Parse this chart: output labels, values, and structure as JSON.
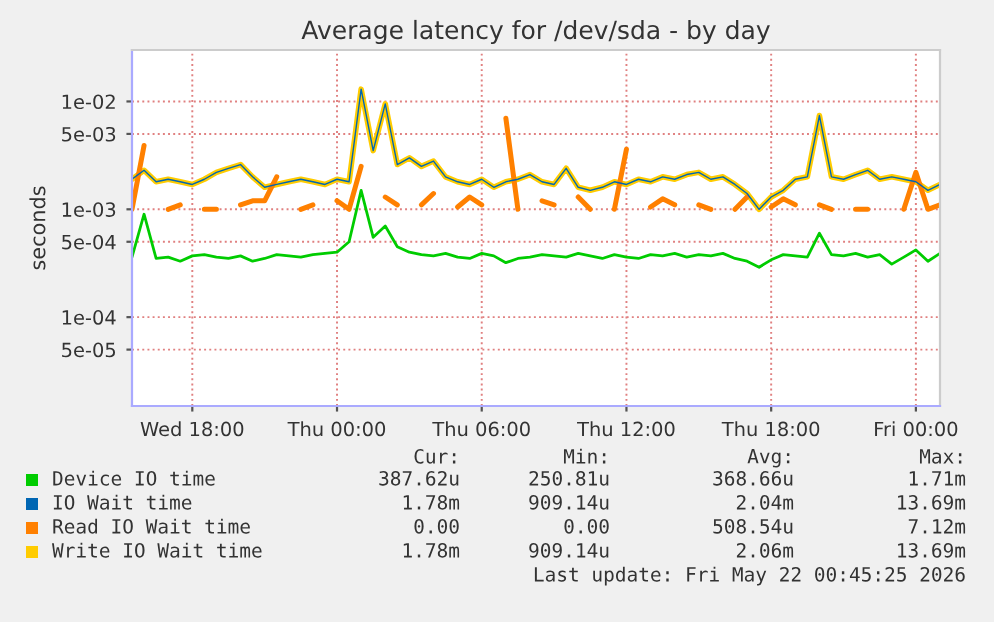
{
  "chart_data": {
    "type": "line",
    "title": "Average latency for /dev/sda - by day",
    "ylabel": "seconds",
    "log": "y",
    "x": [
      "2026-05-20T15:30",
      "2026-05-20T16:00",
      "2026-05-20T16:30",
      "2026-05-20T17:00",
      "2026-05-20T17:30",
      "2026-05-20T18:00",
      "2026-05-20T18:30",
      "2026-05-20T19:00",
      "2026-05-20T19:30",
      "2026-05-20T20:00",
      "2026-05-20T20:30",
      "2026-05-20T21:00",
      "2026-05-20T21:30",
      "2026-05-20T22:00",
      "2026-05-20T22:30",
      "2026-05-20T23:00",
      "2026-05-20T23:30",
      "2026-05-21T00:00",
      "2026-05-21T00:30",
      "2026-05-21T01:00",
      "2026-05-21T01:30",
      "2026-05-21T02:00",
      "2026-05-21T02:30",
      "2026-05-21T03:00",
      "2026-05-21T03:30",
      "2026-05-21T04:00",
      "2026-05-21T04:30",
      "2026-05-21T05:00",
      "2026-05-21T05:30",
      "2026-05-21T06:00",
      "2026-05-21T06:30",
      "2026-05-21T07:00",
      "2026-05-21T07:30",
      "2026-05-21T08:00",
      "2026-05-21T08:30",
      "2026-05-21T09:00",
      "2026-05-21T09:30",
      "2026-05-21T10:00",
      "2026-05-21T10:30",
      "2026-05-21T11:00",
      "2026-05-21T11:30",
      "2026-05-21T12:00",
      "2026-05-21T12:30",
      "2026-05-21T13:00",
      "2026-05-21T13:30",
      "2026-05-21T14:00",
      "2026-05-21T14:30",
      "2026-05-21T15:00",
      "2026-05-21T15:30",
      "2026-05-21T16:00",
      "2026-05-21T16:30",
      "2026-05-21T17:00",
      "2026-05-21T17:30",
      "2026-05-21T18:00",
      "2026-05-21T18:30",
      "2026-05-21T19:00",
      "2026-05-21T19:30",
      "2026-05-21T20:00",
      "2026-05-21T20:30",
      "2026-05-21T21:00",
      "2026-05-21T21:30",
      "2026-05-21T22:00",
      "2026-05-21T22:30",
      "2026-05-21T23:00",
      "2026-05-21T23:30",
      "2026-05-22T00:00",
      "2026-05-22T00:30",
      "2026-05-22T01:00"
    ],
    "series": [
      {
        "name": "Device IO time",
        "color": "#00cc00",
        "values": [
          0.00036,
          0.0009,
          0.00035,
          0.00036,
          0.00033,
          0.00037,
          0.00038,
          0.00036,
          0.00035,
          0.00037,
          0.00033,
          0.00035,
          0.00038,
          0.00037,
          0.00036,
          0.00038,
          0.00039,
          0.0004,
          0.0005,
          0.0015,
          0.00055,
          0.0007,
          0.00045,
          0.0004,
          0.00038,
          0.00037,
          0.00039,
          0.00036,
          0.00035,
          0.00039,
          0.00037,
          0.00032,
          0.00035,
          0.00036,
          0.00038,
          0.00037,
          0.00036,
          0.00039,
          0.00037,
          0.00035,
          0.00038,
          0.00036,
          0.00035,
          0.00038,
          0.00037,
          0.00039,
          0.00036,
          0.00038,
          0.00037,
          0.00039,
          0.00035,
          0.00033,
          0.00029,
          0.00034,
          0.00038,
          0.00037,
          0.00036,
          0.0006,
          0.00038,
          0.00037,
          0.00039,
          0.00036,
          0.00038,
          0.00031,
          0.00036,
          0.00042,
          0.00033,
          0.00039
        ]
      },
      {
        "name": "IO Wait time",
        "color": "#0066b3",
        "values": [
          0.0019,
          0.0023,
          0.0018,
          0.0019,
          0.0018,
          0.0017,
          0.0019,
          0.0022,
          0.0024,
          0.0026,
          0.002,
          0.0016,
          0.0017,
          0.0018,
          0.0019,
          0.0018,
          0.0017,
          0.0019,
          0.0018,
          0.013,
          0.0035,
          0.0095,
          0.0026,
          0.003,
          0.0025,
          0.0028,
          0.002,
          0.0018,
          0.0017,
          0.0019,
          0.0016,
          0.0018,
          0.0019,
          0.0021,
          0.0018,
          0.0017,
          0.0024,
          0.0016,
          0.0015,
          0.0016,
          0.0018,
          0.0017,
          0.0019,
          0.0018,
          0.002,
          0.0019,
          0.0021,
          0.0022,
          0.0019,
          0.002,
          0.0017,
          0.0014,
          0.001,
          0.0013,
          0.0015,
          0.0019,
          0.002,
          0.0074,
          0.002,
          0.0019,
          0.0021,
          0.0023,
          0.0019,
          0.002,
          0.0019,
          0.0018,
          0.0015,
          0.0017
        ]
      },
      {
        "name": "Read IO Wait time",
        "color": "#ff8000",
        "values": [
          0.001,
          0.0039,
          null,
          0.001,
          0.0011,
          null,
          0.001,
          0.001,
          null,
          0.0011,
          0.0012,
          0.0012,
          0.002,
          null,
          0.001,
          0.0011,
          null,
          0.0012,
          0.001,
          0.0025,
          null,
          0.0013,
          0.0011,
          null,
          0.0011,
          0.0014,
          null,
          0.00105,
          0.0013,
          0.0011,
          null,
          0.007,
          0.001,
          null,
          0.0012,
          0.0011,
          null,
          0.0013,
          0.001,
          null,
          0.001,
          0.0036,
          null,
          0.00105,
          0.00125,
          0.0011,
          null,
          0.0011,
          0.001,
          null,
          0.001,
          0.0013,
          null,
          0.00105,
          0.00125,
          0.0011,
          null,
          0.0011,
          0.001,
          null,
          0.001,
          0.001,
          null,
          null,
          0.001,
          0.0022,
          0.001,
          0.0011
        ]
      },
      {
        "name": "Write IO Wait time",
        "color": "#ffcc00",
        "values": [
          0.0019,
          0.0023,
          0.0018,
          0.0019,
          0.0018,
          0.0017,
          0.0019,
          0.0022,
          0.0024,
          0.0026,
          0.002,
          0.0016,
          0.0017,
          0.0018,
          0.0019,
          0.0018,
          0.0017,
          0.0019,
          0.0018,
          0.013,
          0.0035,
          0.0095,
          0.0026,
          0.003,
          0.0025,
          0.0028,
          0.002,
          0.0018,
          0.0017,
          0.0019,
          0.0016,
          0.0018,
          0.0019,
          0.0021,
          0.0018,
          0.0017,
          0.0024,
          0.0016,
          0.0015,
          0.0016,
          0.0018,
          0.0017,
          0.0019,
          0.0018,
          0.002,
          0.0019,
          0.0021,
          0.0022,
          0.0019,
          0.002,
          0.0017,
          0.0014,
          0.001,
          0.0013,
          0.0015,
          0.0019,
          0.002,
          0.0074,
          0.002,
          0.0019,
          0.0021,
          0.0023,
          0.0019,
          0.002,
          0.0019,
          0.0018,
          0.0015,
          0.0017
        ]
      }
    ],
    "xlim": [
      "2026-05-20T15:30",
      "2026-05-22T01:00"
    ],
    "xticks": [
      {
        "value": "2026-05-20T18:00",
        "label": "Wed 18:00"
      },
      {
        "value": "2026-05-21T00:00",
        "label": "Thu 00:00"
      },
      {
        "value": "2026-05-21T06:00",
        "label": "Thu 06:00"
      },
      {
        "value": "2026-05-21T12:00",
        "label": "Thu 12:00"
      },
      {
        "value": "2026-05-21T18:00",
        "label": "Thu 18:00"
      },
      {
        "value": "2026-05-22T00:00",
        "label": "Fri 00:00"
      }
    ],
    "ylim": [
      1.5e-05,
      0.03
    ],
    "yticks": [
      {
        "value": 5e-05,
        "label": "5e-05"
      },
      {
        "value": 0.0001,
        "label": "1e-04"
      },
      {
        "value": 0.0005,
        "label": "5e-04"
      },
      {
        "value": 0.001,
        "label": "1e-03"
      },
      {
        "value": 0.005,
        "label": "5e-03"
      },
      {
        "value": 0.01,
        "label": "1e-02"
      }
    ],
    "grid": true,
    "legend": "bottom",
    "line_style": "solid",
    "marker": "none",
    "annotations": [
      "Cur:",
      "Min:",
      "Avg:",
      "Max:",
      "387.62u",
      "250.81u",
      "368.66u",
      "1.71m",
      "1.78m",
      "909.14u",
      "2.04m",
      "13.69m",
      "0.00",
      "0.00",
      "508.54u",
      "7.12m",
      "1.78m",
      "909.14u",
      "2.06m",
      "13.69m",
      "Last update: Fri May 22 00:45:25 2026"
    ]
  }
}
